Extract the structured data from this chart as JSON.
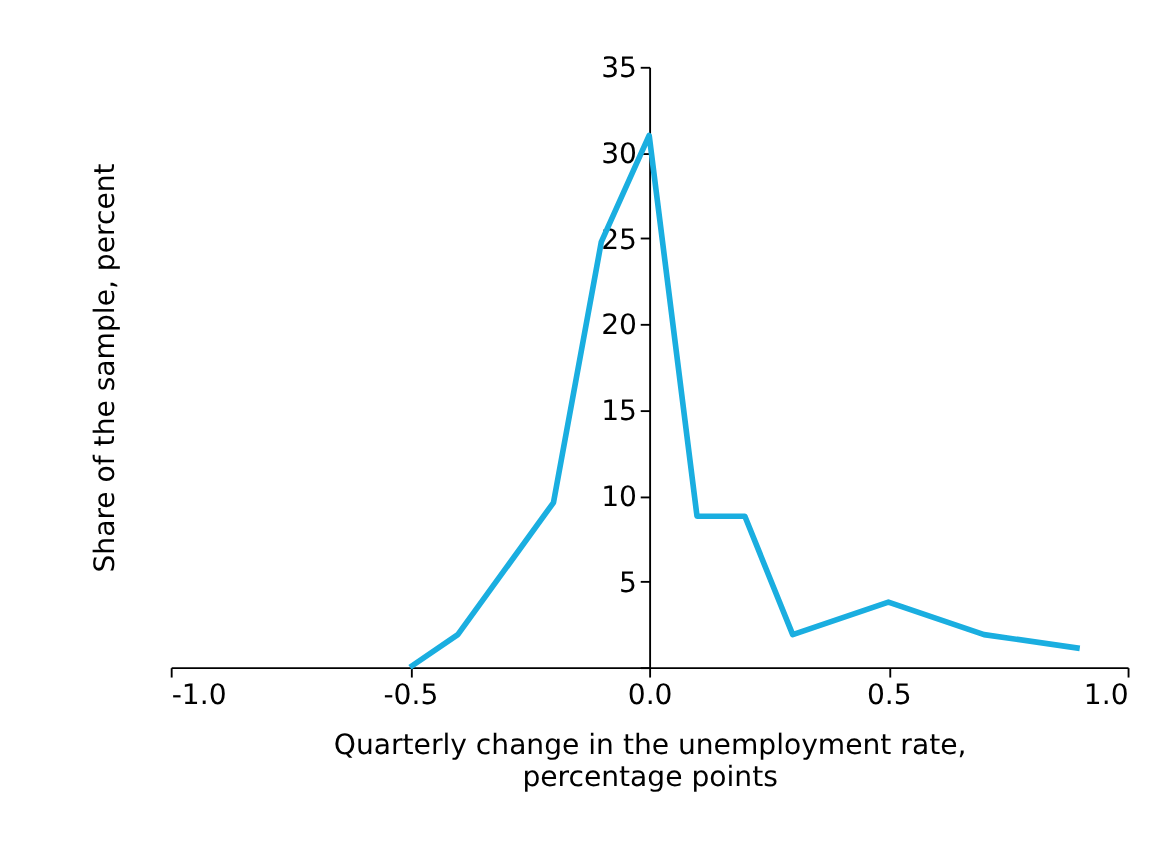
{
  "chart_data": {
    "type": "line",
    "xlabel": "Quarterly change in the unemployment rate,\npercentage points",
    "ylabel": "Share of the sample, percent",
    "x": [
      -0.5,
      -0.4,
      -0.2,
      -0.1,
      0.0,
      0.1,
      0.2,
      0.3,
      0.5,
      0.7,
      0.9
    ],
    "series": [
      {
        "color": "#1aaee0",
        "values": [
          0,
          1.9,
          9.6,
          24.8,
          31,
          8.8,
          8.8,
          1.9,
          3.8,
          1.9,
          1.1
        ]
      }
    ],
    "xlim": [
      -1.0,
      1.0
    ],
    "xticks": [
      {
        "value": -1.0,
        "label": "-1.0"
      },
      {
        "value": -0.5,
        "label": "-0.5"
      },
      {
        "value": 0.0,
        "label": "0.0"
      },
      {
        "value": 0.5,
        "label": "0.5"
      },
      {
        "value": 1.0,
        "label": "1.0"
      }
    ],
    "ylim": [
      0,
      35
    ],
    "yticks": [
      {
        "value": 0,
        "label": null
      },
      5,
      10,
      15,
      20,
      25,
      30,
      35
    ],
    "grid": false,
    "marker": "none",
    "line_style": "solid"
  }
}
